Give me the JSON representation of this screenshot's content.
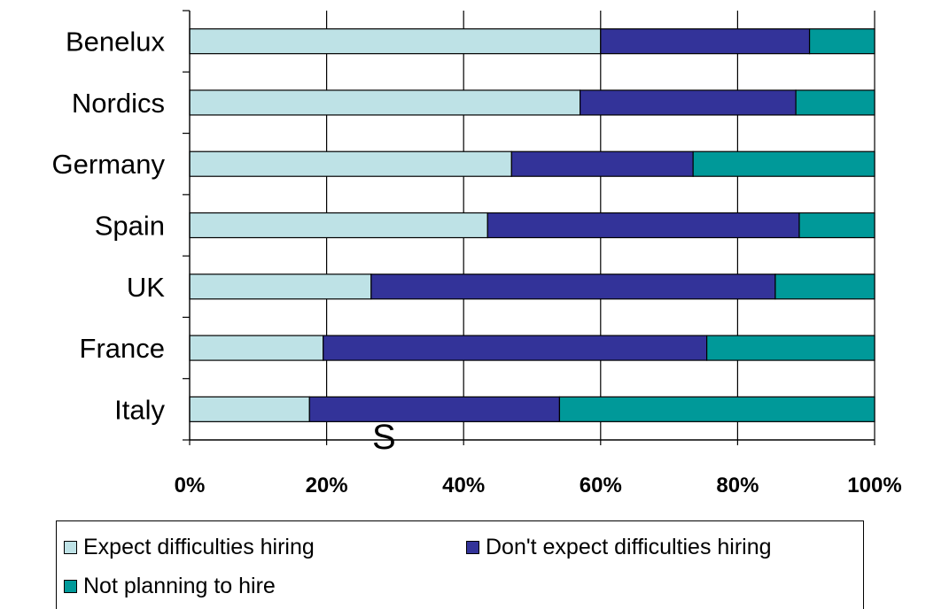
{
  "chart_data": {
    "type": "bar",
    "orientation": "horizontal",
    "stacked": "percent",
    "categories": [
      "Benelux",
      "Nordics",
      "Germany",
      "Spain",
      "UK",
      "France",
      "Italy"
    ],
    "series": [
      {
        "name": "Expect difficulties hiring",
        "color": "#BEE2E6",
        "values": [
          60,
          57,
          47,
          43.5,
          26.5,
          19.5,
          17.5
        ]
      },
      {
        "name": "Don't expect difficulties hiring",
        "color": "#333399",
        "values": [
          30.5,
          31.5,
          26.5,
          45.5,
          59,
          56,
          36.5
        ]
      },
      {
        "name": "Not planning to hire",
        "color": "#009999",
        "values": [
          9.5,
          11.5,
          26.5,
          11,
          14.5,
          24.5,
          46
        ]
      }
    ],
    "xaxis": {
      "ticks": [
        "0%",
        "20%",
        "40%",
        "60%",
        "80%",
        "100%"
      ],
      "range": [
        0,
        100
      ]
    },
    "grid": "vertical",
    "legend": "bottom"
  },
  "stray_text": "S"
}
